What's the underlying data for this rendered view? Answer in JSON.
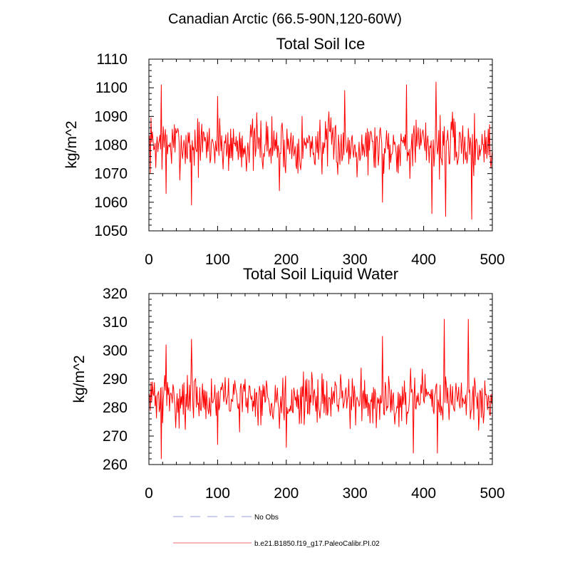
{
  "figure": {
    "suptitle": "Canadian Arctic (66.5-90N,120-60W)",
    "line_color": "#ff0000",
    "legend": [
      {
        "label": "No Obs",
        "color": "#aab0e8",
        "style": "dashed"
      },
      {
        "label": "b.e21.B1850.f19_g17.PaleoCalibr.PI.02",
        "color": "#f08a8a",
        "style": "solid"
      }
    ]
  },
  "chart_data": [
    {
      "type": "line",
      "title": "Total Soil Ice",
      "xlabel": "",
      "ylabel": "kg/m^2",
      "xlim": [
        0,
        500
      ],
      "ylim": [
        1050,
        1110
      ],
      "xticks": [
        "0",
        "100",
        "200",
        "300",
        "400",
        "500"
      ],
      "yticks": [
        "1050",
        "1060",
        "1070",
        "1080",
        "1090",
        "1100",
        "1110"
      ],
      "n_points": 500,
      "summary": {
        "mean": 1080,
        "min": 1054,
        "max": 1102
      },
      "key_points": [
        {
          "x": 0,
          "y": 1082
        },
        {
          "x": 18,
          "y": 1101
        },
        {
          "x": 25,
          "y": 1063
        },
        {
          "x": 62,
          "y": 1059
        },
        {
          "x": 100,
          "y": 1097
        },
        {
          "x": 190,
          "y": 1064
        },
        {
          "x": 285,
          "y": 1099
        },
        {
          "x": 340,
          "y": 1060
        },
        {
          "x": 375,
          "y": 1101
        },
        {
          "x": 418,
          "y": 1102
        },
        {
          "x": 412,
          "y": 1056
        },
        {
          "x": 432,
          "y": 1055
        },
        {
          "x": 470,
          "y": 1054
        },
        {
          "x": 500,
          "y": 1078
        }
      ]
    },
    {
      "type": "line",
      "title": "Total Soil Liquid Water",
      "xlabel": "",
      "ylabel": "kg/m^2",
      "xlim": [
        0,
        500
      ],
      "ylim": [
        260,
        320
      ],
      "xticks": [
        "0",
        "100",
        "200",
        "300",
        "400",
        "500"
      ],
      "yticks": [
        "260",
        "270",
        "280",
        "290",
        "300",
        "310",
        "320"
      ],
      "n_points": 500,
      "summary": {
        "mean": 283,
        "min": 262,
        "max": 311
      },
      "key_points": [
        {
          "x": 0,
          "y": 285
        },
        {
          "x": 18,
          "y": 262
        },
        {
          "x": 25,
          "y": 302
        },
        {
          "x": 62,
          "y": 304
        },
        {
          "x": 100,
          "y": 267
        },
        {
          "x": 200,
          "y": 266
        },
        {
          "x": 340,
          "y": 305
        },
        {
          "x": 385,
          "y": 264
        },
        {
          "x": 430,
          "y": 311
        },
        {
          "x": 420,
          "y": 264
        },
        {
          "x": 465,
          "y": 311
        },
        {
          "x": 480,
          "y": 272
        },
        {
          "x": 500,
          "y": 286
        }
      ]
    }
  ]
}
